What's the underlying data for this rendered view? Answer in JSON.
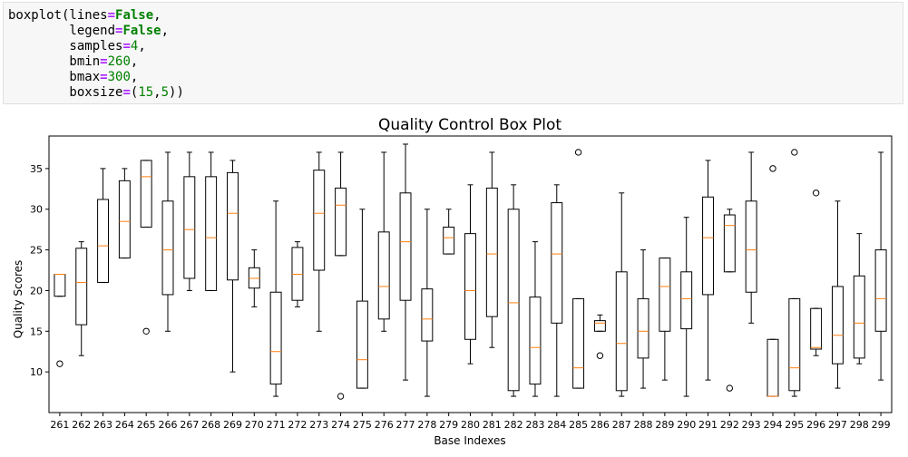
{
  "code": {
    "fn": "boxplot",
    "args": [
      {
        "name": "lines",
        "value": "False",
        "kind": "kw",
        "lead": "boxplot(",
        "trail": ","
      },
      {
        "name": "legend",
        "value": "False",
        "kind": "kw",
        "lead": "        ",
        "trail": ","
      },
      {
        "name": "samples",
        "value": "4",
        "kind": "num",
        "lead": "        ",
        "trail": ","
      },
      {
        "name": "bmin",
        "value": "260",
        "kind": "num",
        "lead": "        ",
        "trail": ","
      },
      {
        "name": "bmax",
        "value": "300",
        "kind": "num",
        "lead": "        ",
        "trail": ","
      },
      {
        "name": "boxsize",
        "value": "(15,5)",
        "kind": "tuple",
        "lead": "        ",
        "trail": ")"
      }
    ]
  },
  "chart_data": {
    "type": "boxplot",
    "title": "Quality Control Box Plot",
    "xlabel": "Base Indexes",
    "ylabel": "Quality Scores",
    "ylim": [
      5,
      39
    ],
    "yticks": [
      10,
      15,
      20,
      25,
      30,
      35
    ],
    "median_color": "#ff7f0e",
    "box_color": "#000000",
    "categories": [
      "261",
      "262",
      "263",
      "264",
      "265",
      "266",
      "267",
      "268",
      "269",
      "270",
      "271",
      "272",
      "273",
      "274",
      "275",
      "276",
      "277",
      "278",
      "279",
      "280",
      "281",
      "282",
      "283",
      "284",
      "285",
      "286",
      "287",
      "288",
      "289",
      "290",
      "291",
      "292",
      "293",
      "294",
      "295",
      "296",
      "297",
      "298",
      "299"
    ],
    "boxes": [
      {
        "whislo": 19.3,
        "q1": 19.3,
        "med": 22,
        "q3": 22,
        "whishi": 22,
        "fliers": [
          11
        ]
      },
      {
        "whislo": 12,
        "q1": 15.8,
        "med": 21,
        "q3": 25.2,
        "whishi": 26,
        "fliers": []
      },
      {
        "whislo": 21,
        "q1": 21,
        "med": 25.5,
        "q3": 31.2,
        "whishi": 35,
        "fliers": []
      },
      {
        "whislo": 24,
        "q1": 24,
        "med": 28.5,
        "q3": 33.5,
        "whishi": 35,
        "fliers": []
      },
      {
        "whislo": 27.8,
        "q1": 27.8,
        "med": 34,
        "q3": 36,
        "whishi": 36,
        "fliers": [
          15
        ]
      },
      {
        "whislo": 15,
        "q1": 19.5,
        "med": 25,
        "q3": 31,
        "whishi": 37,
        "fliers": []
      },
      {
        "whislo": 20,
        "q1": 21.5,
        "med": 27.5,
        "q3": 34,
        "whishi": 37,
        "fliers": []
      },
      {
        "whislo": 20,
        "q1": 20,
        "med": 26.5,
        "q3": 34,
        "whishi": 37,
        "fliers": []
      },
      {
        "whislo": 10,
        "q1": 21.3,
        "med": 29.5,
        "q3": 34.5,
        "whishi": 36,
        "fliers": []
      },
      {
        "whislo": 18,
        "q1": 20.3,
        "med": 21.5,
        "q3": 22.8,
        "whishi": 25,
        "fliers": []
      },
      {
        "whislo": 7,
        "q1": 8.5,
        "med": 12.5,
        "q3": 19.8,
        "whishi": 31,
        "fliers": []
      },
      {
        "whislo": 18,
        "q1": 18.8,
        "med": 22,
        "q3": 25.3,
        "whishi": 26,
        "fliers": []
      },
      {
        "whislo": 15,
        "q1": 22.5,
        "med": 29.5,
        "q3": 34.8,
        "whishi": 37,
        "fliers": []
      },
      {
        "whislo": 24.3,
        "q1": 24.3,
        "med": 30.5,
        "q3": 32.6,
        "whishi": 37,
        "fliers": [
          7
        ]
      },
      {
        "whislo": 8,
        "q1": 8,
        "med": 11.5,
        "q3": 18.7,
        "whishi": 30,
        "fliers": []
      },
      {
        "whislo": 15,
        "q1": 16.5,
        "med": 20.5,
        "q3": 27.2,
        "whishi": 37,
        "fliers": []
      },
      {
        "whislo": 9,
        "q1": 18.8,
        "med": 26,
        "q3": 32,
        "whishi": 38,
        "fliers": []
      },
      {
        "whislo": 7,
        "q1": 13.8,
        "med": 16.5,
        "q3": 20.2,
        "whishi": 30,
        "fliers": []
      },
      {
        "whislo": 24.5,
        "q1": 24.5,
        "med": 26.5,
        "q3": 27.8,
        "whishi": 30,
        "fliers": []
      },
      {
        "whislo": 11,
        "q1": 14,
        "med": 20,
        "q3": 27,
        "whishi": 33,
        "fliers": []
      },
      {
        "whislo": 13,
        "q1": 16.8,
        "med": 24.5,
        "q3": 32.6,
        "whishi": 37,
        "fliers": []
      },
      {
        "whislo": 7,
        "q1": 7.7,
        "med": 18.5,
        "q3": 30,
        "whishi": 33,
        "fliers": []
      },
      {
        "whislo": 7,
        "q1": 8.5,
        "med": 13,
        "q3": 19.2,
        "whishi": 26,
        "fliers": []
      },
      {
        "whislo": 7,
        "q1": 16,
        "med": 24.5,
        "q3": 30.8,
        "whishi": 33,
        "fliers": []
      },
      {
        "whislo": 8,
        "q1": 8,
        "med": 10.5,
        "q3": 19,
        "whishi": 19,
        "fliers": [
          37
        ]
      },
      {
        "whislo": 15,
        "q1": 15,
        "med": 16,
        "q3": 16.3,
        "whishi": 17,
        "fliers": [
          12
        ]
      },
      {
        "whislo": 7,
        "q1": 7.7,
        "med": 13.5,
        "q3": 22.3,
        "whishi": 32,
        "fliers": []
      },
      {
        "whislo": 8,
        "q1": 11.7,
        "med": 15,
        "q3": 19,
        "whishi": 25,
        "fliers": []
      },
      {
        "whislo": 9,
        "q1": 15,
        "med": 20.5,
        "q3": 24,
        "whishi": 24,
        "fliers": []
      },
      {
        "whislo": 7,
        "q1": 15.3,
        "med": 19,
        "q3": 22.3,
        "whishi": 29,
        "fliers": []
      },
      {
        "whislo": 9,
        "q1": 19.5,
        "med": 26.5,
        "q3": 31.5,
        "whishi": 36,
        "fliers": []
      },
      {
        "whislo": 22.3,
        "q1": 22.3,
        "med": 28,
        "q3": 29.3,
        "whishi": 30,
        "fliers": [
          8
        ]
      },
      {
        "whislo": 16,
        "q1": 19.8,
        "med": 25,
        "q3": 31,
        "whishi": 37,
        "fliers": []
      },
      {
        "whislo": 7,
        "q1": 7,
        "med": 7,
        "q3": 14,
        "whishi": 14,
        "fliers": [
          35
        ]
      },
      {
        "whislo": 7,
        "q1": 7.7,
        "med": 10.5,
        "q3": 19,
        "whishi": 19,
        "fliers": [
          37
        ]
      },
      {
        "whislo": 12,
        "q1": 12.8,
        "med": 13,
        "q3": 17.8,
        "whishi": 17.8,
        "fliers": [
          32
        ]
      },
      {
        "whislo": 8,
        "q1": 11,
        "med": 14.5,
        "q3": 20.5,
        "whishi": 31,
        "fliers": []
      },
      {
        "whislo": 11,
        "q1": 11.7,
        "med": 16,
        "q3": 21.8,
        "whishi": 27,
        "fliers": []
      },
      {
        "whislo": 9,
        "q1": 15,
        "med": 19,
        "q3": 25,
        "whishi": 37,
        "fliers": []
      }
    ]
  }
}
